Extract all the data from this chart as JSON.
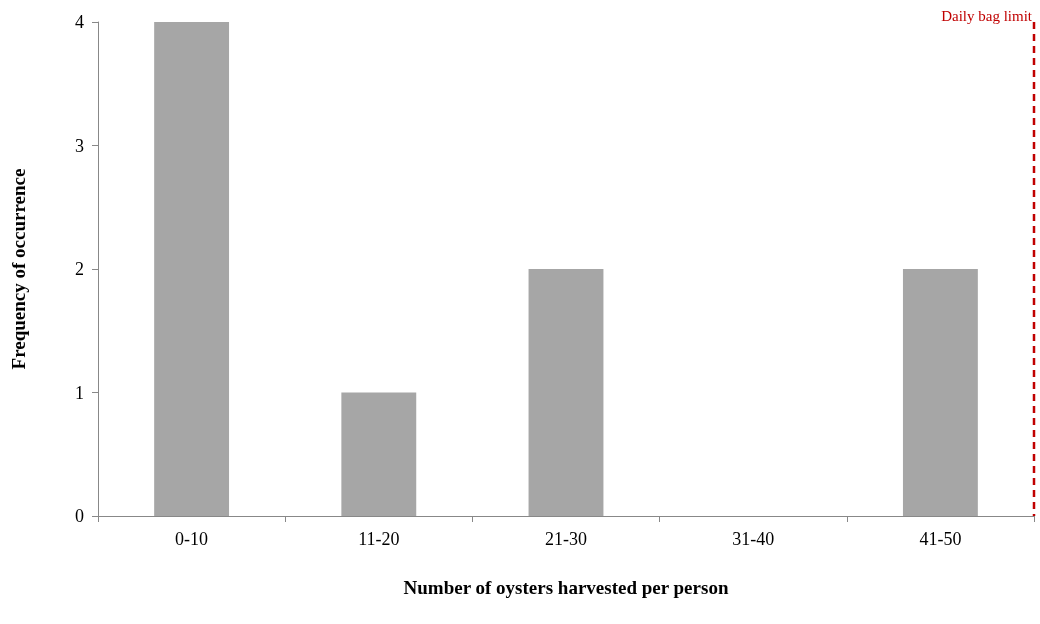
{
  "chart_data": {
    "type": "bar",
    "xlabel": "Number of oysters harvested per person",
    "ylabel": "Frequency of occurrence",
    "categories": [
      "0-10",
      "11-20",
      "21-30",
      "31-40",
      "41-50"
    ],
    "values": [
      4,
      1,
      2,
      0,
      2
    ],
    "color": "#a6a6a6",
    "ylim": [
      0,
      4
    ],
    "yticks": [
      0,
      1,
      2,
      3,
      4
    ],
    "grid": false,
    "annotations": [
      "Daily bag limit"
    ]
  }
}
